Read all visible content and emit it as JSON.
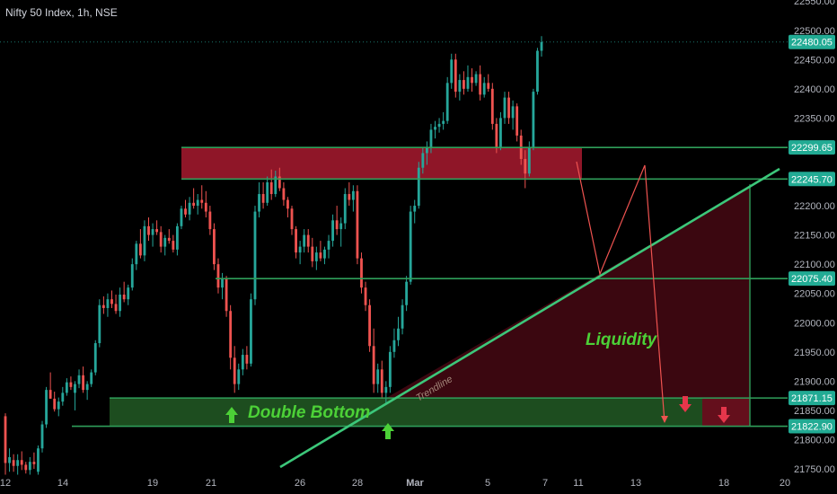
{
  "chart_data": {
    "type": "candlestick",
    "title": "Nifty 50 Index, 1h, NSE",
    "xlabel": "",
    "ylabel": "",
    "ylim": [
      21730,
      22580
    ],
    "y_ticks": [
      21750,
      21800,
      21850,
      21900,
      21950,
      22000,
      22050,
      22100,
      22150,
      22200,
      22250,
      22300,
      22350,
      22400,
      22450,
      22500,
      22550
    ],
    "x_ticks": [
      "12",
      "14",
      "19",
      "21",
      "26",
      "28",
      "Mar",
      "5",
      "7",
      "11",
      "13",
      "18",
      "20"
    ],
    "grid": false,
    "price_labels": [
      "22480.05",
      "22299.65",
      "22245.70",
      "22075.40",
      "21871.15",
      "21822.90"
    ],
    "annotations": [
      "Double Bottom",
      "Liquidity",
      "Trendline"
    ],
    "colors": {
      "up": "#26a69a",
      "down": "#ef5350",
      "label_bg": "#22ab94",
      "zone_red": "#b71c33",
      "zone_green": "#2e7d32",
      "text_green": "#4cd137"
    },
    "candles": [
      {
        "o": 21840,
        "h": 21845,
        "l": 21740,
        "c": 21760
      },
      {
        "o": 21760,
        "h": 21785,
        "l": 21745,
        "c": 21770
      },
      {
        "o": 21765,
        "h": 21775,
        "l": 21745,
        "c": 21755
      },
      {
        "o": 21755,
        "h": 21775,
        "l": 21740,
        "c": 21765
      },
      {
        "o": 21765,
        "h": 21780,
        "l": 21748,
        "c": 21757
      },
      {
        "o": 21757,
        "h": 21762,
        "l": 21742,
        "c": 21748
      },
      {
        "o": 21748,
        "h": 21770,
        "l": 21740,
        "c": 21762
      },
      {
        "o": 21762,
        "h": 21778,
        "l": 21750,
        "c": 21758
      },
      {
        "o": 21745,
        "h": 21790,
        "l": 21740,
        "c": 21785
      },
      {
        "o": 21785,
        "h": 21832,
        "l": 21778,
        "c": 21826
      },
      {
        "o": 21826,
        "h": 21890,
        "l": 21820,
        "c": 21885
      },
      {
        "o": 21885,
        "h": 21915,
        "l": 21870,
        "c": 21870
      },
      {
        "o": 21870,
        "h": 21882,
        "l": 21848,
        "c": 21852
      },
      {
        "o": 21852,
        "h": 21872,
        "l": 21840,
        "c": 21865
      },
      {
        "o": 21865,
        "h": 21890,
        "l": 21858,
        "c": 21880
      },
      {
        "o": 21880,
        "h": 21905,
        "l": 21875,
        "c": 21898
      },
      {
        "o": 21898,
        "h": 21908,
        "l": 21885,
        "c": 21890
      },
      {
        "o": 21880,
        "h": 21900,
        "l": 21850,
        "c": 21895
      },
      {
        "o": 21895,
        "h": 21920,
        "l": 21888,
        "c": 21910
      },
      {
        "o": 21910,
        "h": 21925,
        "l": 21880,
        "c": 21885
      },
      {
        "o": 21885,
        "h": 21900,
        "l": 21868,
        "c": 21895
      },
      {
        "o": 21895,
        "h": 21920,
        "l": 21890,
        "c": 21915
      },
      {
        "o": 21915,
        "h": 21970,
        "l": 21910,
        "c": 21965
      },
      {
        "o": 21965,
        "h": 22040,
        "l": 21958,
        "c": 22030
      },
      {
        "o": 22030,
        "h": 22045,
        "l": 22015,
        "c": 22025
      },
      {
        "o": 22025,
        "h": 22050,
        "l": 22010,
        "c": 22040
      },
      {
        "o": 22040,
        "h": 22055,
        "l": 22025,
        "c": 22032
      },
      {
        "o": 22032,
        "h": 22048,
        "l": 22015,
        "c": 22020
      },
      {
        "o": 22020,
        "h": 22060,
        "l": 22010,
        "c": 22048
      },
      {
        "o": 22048,
        "h": 22070,
        "l": 22035,
        "c": 22040
      },
      {
        "o": 22040,
        "h": 22065,
        "l": 22030,
        "c": 22060
      },
      {
        "o": 22060,
        "h": 22110,
        "l": 22055,
        "c": 22100
      },
      {
        "o": 22100,
        "h": 22140,
        "l": 22090,
        "c": 22135
      },
      {
        "o": 22135,
        "h": 22160,
        "l": 22110,
        "c": 22115
      },
      {
        "o": 22115,
        "h": 22175,
        "l": 22105,
        "c": 22165
      },
      {
        "o": 22165,
        "h": 22180,
        "l": 22140,
        "c": 22150
      },
      {
        "o": 22150,
        "h": 22170,
        "l": 22130,
        "c": 22160
      },
      {
        "o": 22160,
        "h": 22175,
        "l": 22150,
        "c": 22155
      },
      {
        "o": 22155,
        "h": 22165,
        "l": 22120,
        "c": 22130
      },
      {
        "o": 22130,
        "h": 22150,
        "l": 22115,
        "c": 22145
      },
      {
        "o": 22145,
        "h": 22160,
        "l": 22135,
        "c": 22140
      },
      {
        "o": 22140,
        "h": 22150,
        "l": 22120,
        "c": 22125
      },
      {
        "o": 22125,
        "h": 22170,
        "l": 22115,
        "c": 22165
      },
      {
        "o": 22165,
        "h": 22200,
        "l": 22160,
        "c": 22195
      },
      {
        "o": 22195,
        "h": 22210,
        "l": 22180,
        "c": 22185
      },
      {
        "o": 22185,
        "h": 22215,
        "l": 22175,
        "c": 22205
      },
      {
        "o": 22205,
        "h": 22230,
        "l": 22195,
        "c": 22200
      },
      {
        "o": 22200,
        "h": 22220,
        "l": 22185,
        "c": 22210
      },
      {
        "o": 22210,
        "h": 22235,
        "l": 22195,
        "c": 22205
      },
      {
        "o": 22205,
        "h": 22225,
        "l": 22180,
        "c": 22190
      },
      {
        "o": 22190,
        "h": 22200,
        "l": 22150,
        "c": 22160
      },
      {
        "o": 22160,
        "h": 22170,
        "l": 22090,
        "c": 22100
      },
      {
        "o": 22100,
        "h": 22110,
        "l": 22050,
        "c": 22060
      },
      {
        "o": 22060,
        "h": 22085,
        "l": 22040,
        "c": 22075
      },
      {
        "o": 22075,
        "h": 22080,
        "l": 22010,
        "c": 22020
      },
      {
        "o": 22020,
        "h": 22030,
        "l": 21920,
        "c": 21940
      },
      {
        "o": 21940,
        "h": 21960,
        "l": 21880,
        "c": 21895
      },
      {
        "o": 21895,
        "h": 21930,
        "l": 21885,
        "c": 21920
      },
      {
        "o": 21920,
        "h": 21955,
        "l": 21910,
        "c": 21945
      },
      {
        "o": 21945,
        "h": 21960,
        "l": 21920,
        "c": 21930
      },
      {
        "o": 21930,
        "h": 22050,
        "l": 21925,
        "c": 22040
      },
      {
        "o": 22040,
        "h": 22200,
        "l": 22030,
        "c": 22190
      },
      {
        "o": 22190,
        "h": 22240,
        "l": 22180,
        "c": 22220
      },
      {
        "o": 22220,
        "h": 22240,
        "l": 22195,
        "c": 22205
      },
      {
        "o": 22205,
        "h": 22250,
        "l": 22200,
        "c": 22240
      },
      {
        "o": 22240,
        "h": 22262,
        "l": 22210,
        "c": 22220
      },
      {
        "o": 22220,
        "h": 22260,
        "l": 22215,
        "c": 22250
      },
      {
        "o": 22250,
        "h": 22265,
        "l": 22225,
        "c": 22230
      },
      {
        "o": 22230,
        "h": 22240,
        "l": 22200,
        "c": 22210
      },
      {
        "o": 22210,
        "h": 22215,
        "l": 22180,
        "c": 22195
      },
      {
        "o": 22195,
        "h": 22200,
        "l": 22150,
        "c": 22160
      },
      {
        "o": 22160,
        "h": 22165,
        "l": 22110,
        "c": 22120
      },
      {
        "o": 22120,
        "h": 22140,
        "l": 22100,
        "c": 22130
      },
      {
        "o": 22130,
        "h": 22160,
        "l": 22120,
        "c": 22150
      },
      {
        "o": 22150,
        "h": 22160,
        "l": 22120,
        "c": 22130
      },
      {
        "o": 22130,
        "h": 22145,
        "l": 22095,
        "c": 22105
      },
      {
        "o": 22105,
        "h": 22130,
        "l": 22090,
        "c": 22120
      },
      {
        "o": 22120,
        "h": 22140,
        "l": 22105,
        "c": 22110
      },
      {
        "o": 22110,
        "h": 22130,
        "l": 22100,
        "c": 22125
      },
      {
        "o": 22125,
        "h": 22150,
        "l": 22110,
        "c": 22140
      },
      {
        "o": 22140,
        "h": 22185,
        "l": 22130,
        "c": 22175
      },
      {
        "o": 22175,
        "h": 22200,
        "l": 22150,
        "c": 22160
      },
      {
        "o": 22160,
        "h": 22180,
        "l": 22130,
        "c": 22170
      },
      {
        "o": 22170,
        "h": 22230,
        "l": 22160,
        "c": 22220
      },
      {
        "o": 22220,
        "h": 22240,
        "l": 22200,
        "c": 22210
      },
      {
        "o": 22210,
        "h": 22235,
        "l": 22190,
        "c": 22225
      },
      {
        "o": 22225,
        "h": 22235,
        "l": 22100,
        "c": 22110
      },
      {
        "o": 22110,
        "h": 22120,
        "l": 22050,
        "c": 22060
      },
      {
        "o": 22060,
        "h": 22070,
        "l": 22020,
        "c": 22030
      },
      {
        "o": 22030,
        "h": 22040,
        "l": 21950,
        "c": 21960
      },
      {
        "o": 21960,
        "h": 21990,
        "l": 21880,
        "c": 21895
      },
      {
        "o": 21895,
        "h": 21930,
        "l": 21880,
        "c": 21920
      },
      {
        "o": 21920,
        "h": 21935,
        "l": 21870,
        "c": 21880
      },
      {
        "o": 21880,
        "h": 21900,
        "l": 21860,
        "c": 21890
      },
      {
        "o": 21890,
        "h": 21960,
        "l": 21880,
        "c": 21950
      },
      {
        "o": 21950,
        "h": 21990,
        "l": 21940,
        "c": 21970
      },
      {
        "o": 21970,
        "h": 22010,
        "l": 21960,
        "c": 21990
      },
      {
        "o": 21990,
        "h": 22040,
        "l": 21980,
        "c": 22030
      },
      {
        "o": 22030,
        "h": 22080,
        "l": 22020,
        "c": 22070
      },
      {
        "o": 22070,
        "h": 22200,
        "l": 22065,
        "c": 22190
      },
      {
        "o": 22190,
        "h": 22210,
        "l": 22170,
        "c": 22200
      },
      {
        "o": 22200,
        "h": 22275,
        "l": 22195,
        "c": 22265
      },
      {
        "o": 22265,
        "h": 22300,
        "l": 22255,
        "c": 22290
      },
      {
        "o": 22290,
        "h": 22310,
        "l": 22270,
        "c": 22300
      },
      {
        "o": 22300,
        "h": 22340,
        "l": 22290,
        "c": 22330
      },
      {
        "o": 22330,
        "h": 22345,
        "l": 22315,
        "c": 22335
      },
      {
        "o": 22335,
        "h": 22350,
        "l": 22325,
        "c": 22340
      },
      {
        "o": 22340,
        "h": 22360,
        "l": 22330,
        "c": 22345
      },
      {
        "o": 22345,
        "h": 22420,
        "l": 22340,
        "c": 22410
      },
      {
        "o": 22410,
        "h": 22460,
        "l": 22400,
        "c": 22450
      },
      {
        "o": 22450,
        "h": 22460,
        "l": 22385,
        "c": 22395
      },
      {
        "o": 22395,
        "h": 22425,
        "l": 22380,
        "c": 22415
      },
      {
        "o": 22415,
        "h": 22430,
        "l": 22390,
        "c": 22400
      },
      {
        "o": 22400,
        "h": 22440,
        "l": 22395,
        "c": 22420
      },
      {
        "o": 22420,
        "h": 22435,
        "l": 22395,
        "c": 22410
      },
      {
        "o": 22410,
        "h": 22430,
        "l": 22405,
        "c": 22425
      },
      {
        "o": 22425,
        "h": 22440,
        "l": 22380,
        "c": 22390
      },
      {
        "o": 22390,
        "h": 22420,
        "l": 22385,
        "c": 22410
      },
      {
        "o": 22410,
        "h": 22425,
        "l": 22395,
        "c": 22400
      },
      {
        "o": 22400,
        "h": 22410,
        "l": 22330,
        "c": 22340
      },
      {
        "o": 22340,
        "h": 22350,
        "l": 22290,
        "c": 22300
      },
      {
        "o": 22300,
        "h": 22360,
        "l": 22295,
        "c": 22350
      },
      {
        "o": 22350,
        "h": 22395,
        "l": 22340,
        "c": 22385
      },
      {
        "o": 22385,
        "h": 22395,
        "l": 22340,
        "c": 22350
      },
      {
        "o": 22350,
        "h": 22380,
        "l": 22330,
        "c": 22370
      },
      {
        "o": 22370,
        "h": 22375,
        "l": 22310,
        "c": 22320
      },
      {
        "o": 22320,
        "h": 22330,
        "l": 22270,
        "c": 22280
      },
      {
        "o": 22280,
        "h": 22295,
        "l": 22230,
        "c": 22255
      },
      {
        "o": 22255,
        "h": 22310,
        "l": 22250,
        "c": 22300
      },
      {
        "o": 22300,
        "h": 22400,
        "l": 22295,
        "c": 22395
      },
      {
        "o": 22395,
        "h": 22470,
        "l": 22390,
        "c": 22465
      },
      {
        "o": 22465,
        "h": 22490,
        "l": 22455,
        "c": 22480
      }
    ]
  }
}
